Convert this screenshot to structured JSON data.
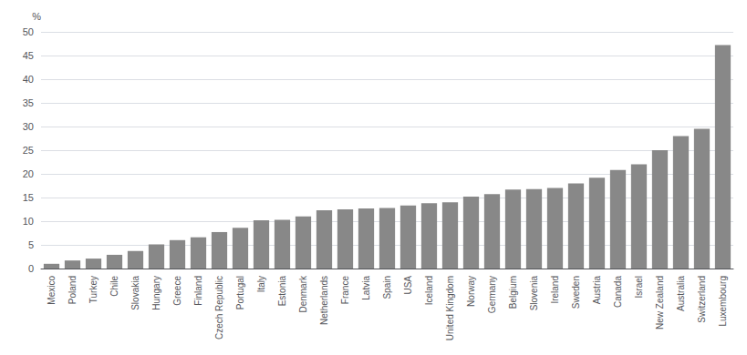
{
  "chart_data": {
    "type": "bar",
    "ylabel": "%",
    "categories": [
      "Mexico",
      "Poland",
      "Turkey",
      "Chile",
      "Slovakia",
      "Hungary",
      "Greece",
      "Finland",
      "Czech Republic",
      "Portugal",
      "Italy",
      "Estonia",
      "Denmark",
      "Netherlands",
      "France",
      "Latvia",
      "Spain",
      "USA",
      "Iceland",
      "United Kingdom",
      "Norway",
      "Germany",
      "Belgium",
      "Slovenia",
      "Ireland",
      "Sweden",
      "Austria",
      "Canada",
      "Israel",
      "New Zealand",
      "Australia",
      "Switzerland",
      "Luxembourg"
    ],
    "values": [
      1.0,
      1.7,
      2.1,
      2.9,
      3.7,
      5.1,
      6.0,
      6.6,
      7.7,
      8.6,
      10.2,
      10.3,
      11.0,
      12.3,
      12.5,
      12.7,
      12.8,
      13.3,
      13.8,
      14.0,
      15.2,
      15.7,
      16.7,
      16.8,
      17.0,
      18.0,
      19.2,
      20.8,
      22.0,
      25.0,
      28.0,
      29.5,
      47.2
    ],
    "color": "#888888",
    "ylim": [
      0,
      50
    ],
    "yticks": [
      0,
      5,
      10,
      15,
      20,
      25,
      30,
      35,
      40,
      45,
      50
    ],
    "grid": true
  }
}
